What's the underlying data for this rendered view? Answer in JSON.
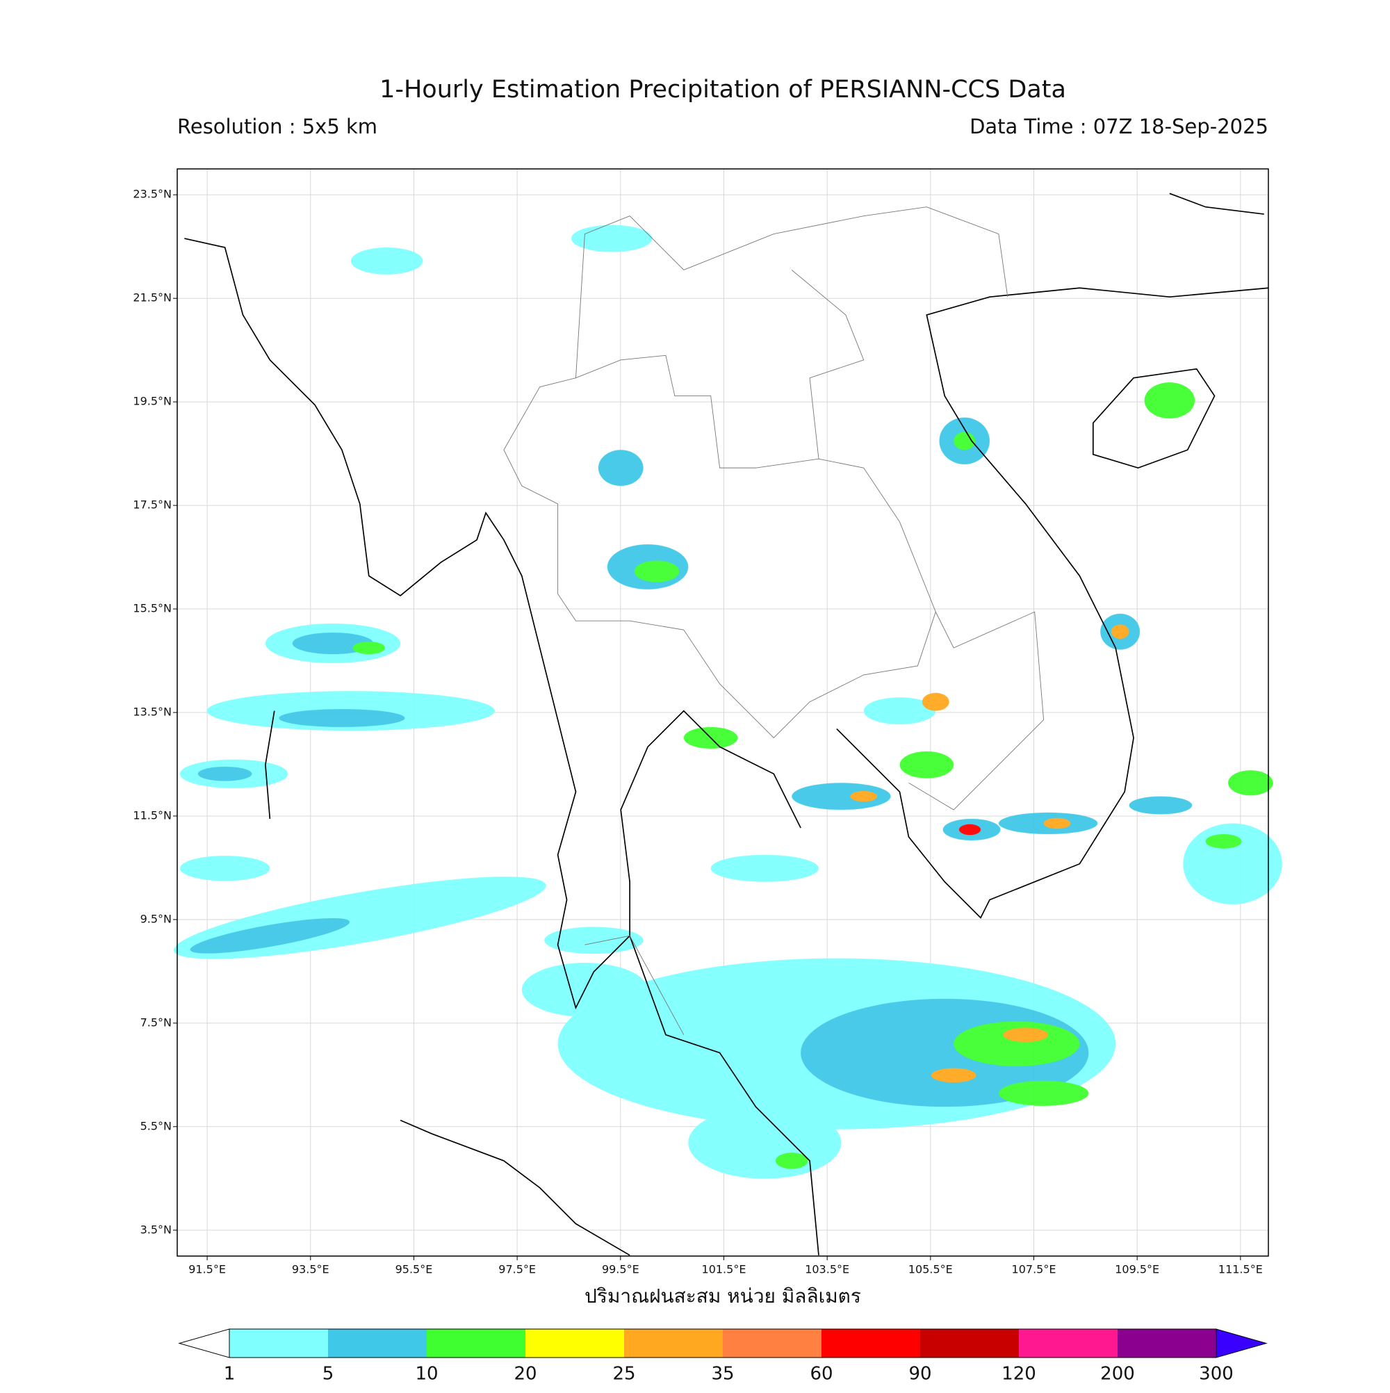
{
  "header": {
    "title": "1-Hourly Estimation Precipitation of PERSIANN-CCS Data",
    "resolution": "Resolution : 5x5 km",
    "data_time": "Data Time : 07Z 18-Sep-2025"
  },
  "map": {
    "lon_range": [
      90.92,
      112.04
    ],
    "lat_range": [
      3.0,
      24.0
    ],
    "grid": true,
    "lon_ticks": [
      {
        "value": 91.5,
        "label": "91.5°E"
      },
      {
        "value": 93.5,
        "label": "93.5°E"
      },
      {
        "value": 95.5,
        "label": "95.5°E"
      },
      {
        "value": 97.5,
        "label": "97.5°E"
      },
      {
        "value": 99.5,
        "label": "99.5°E"
      },
      {
        "value": 101.5,
        "label": "101.5°E"
      },
      {
        "value": 103.5,
        "label": "103.5°E"
      },
      {
        "value": 105.5,
        "label": "105.5°E"
      },
      {
        "value": 107.5,
        "label": "107.5°E"
      },
      {
        "value": 109.5,
        "label": "109.5°E"
      },
      {
        "value": 111.5,
        "label": "111.5°E"
      }
    ],
    "lat_ticks": [
      {
        "value": 23.5,
        "label": "23.5°N"
      },
      {
        "value": 21.5,
        "label": "21.5°N"
      },
      {
        "value": 19.5,
        "label": "19.5°N"
      },
      {
        "value": 17.5,
        "label": "17.5°N"
      },
      {
        "value": 15.5,
        "label": "15.5°N"
      },
      {
        "value": 13.5,
        "label": "13.5°N"
      },
      {
        "value": 11.5,
        "label": "11.5°N"
      },
      {
        "value": 9.5,
        "label": "9.5°N"
      },
      {
        "value": 7.5,
        "label": "7.5°N"
      },
      {
        "value": 5.5,
        "label": "5.5°N"
      },
      {
        "value": 3.5,
        "label": "3.5°N"
      }
    ],
    "xlabel": "ปริมาณฝนสะสม หน่วย มิลลิเมตร"
  },
  "colorbar": {
    "bounds": [
      1,
      5,
      10,
      20,
      25,
      35,
      60,
      90,
      120,
      200,
      300
    ],
    "colors": [
      "#80ffff",
      "#40c8e8",
      "#40ff30",
      "#ffff00",
      "#ffa820",
      "#ff8040",
      "#ff0000",
      "#c80000",
      "#ff1890",
      "#8c0090"
    ],
    "extend_color": "#3a00ff"
  }
}
